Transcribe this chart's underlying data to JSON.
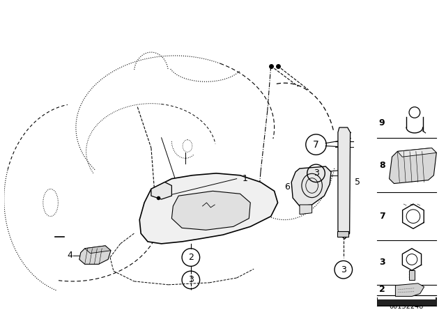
{
  "background_color": "#ffffff",
  "line_color": "#000000",
  "diagram_number": "00152248",
  "fig_width": 6.4,
  "fig_height": 4.48,
  "dpi": 100
}
